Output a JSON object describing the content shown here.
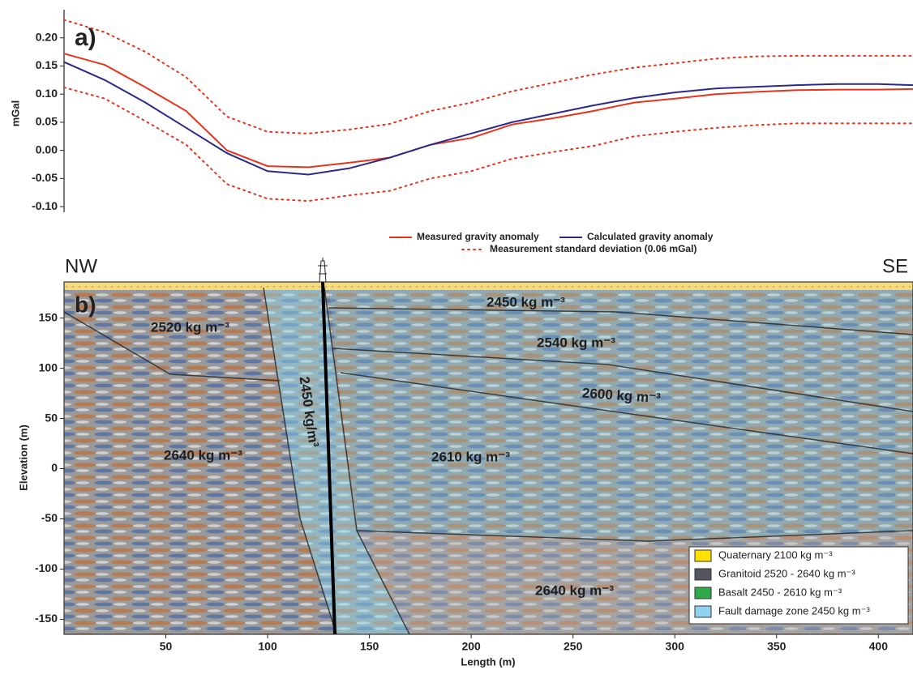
{
  "chart_data": [
    {
      "type": "line",
      "panel_label": "a)",
      "y_label": "mGal",
      "x": [
        0,
        20,
        40,
        60,
        80,
        100,
        120,
        140,
        160,
        180,
        200,
        220,
        240,
        260,
        280,
        300,
        320,
        340,
        360,
        380,
        400,
        417
      ],
      "xlim": [
        0,
        417
      ],
      "ylim": [
        -0.11,
        0.25
      ],
      "yticks": [
        {
          "value": -0.1,
          "label": "-0.10"
        },
        -0.05,
        {
          "value": 0,
          "label": "0.00"
        },
        0.05,
        {
          "value": 0.1,
          "label": "0.10"
        },
        0.15,
        {
          "value": 0.2,
          "label": "0.20"
        }
      ],
      "series": [
        {
          "name": "Measured gravity anomaly",
          "color": "#e8341c",
          "values": [
            0.172,
            0.152,
            0.112,
            0.07,
            0.0,
            -0.028,
            -0.03,
            -0.022,
            -0.013,
            0.01,
            0.022,
            0.046,
            0.057,
            0.07,
            0.085,
            0.092,
            0.1,
            0.104,
            0.107,
            0.108,
            0.108,
            0.109
          ]
        },
        {
          "name": "Calculated gravity anomaly",
          "color": "#2b2a8c",
          "values": [
            0.157,
            0.125,
            0.085,
            0.04,
            -0.005,
            -0.037,
            -0.043,
            -0.032,
            -0.013,
            0.01,
            0.03,
            0.05,
            0.065,
            0.08,
            0.093,
            0.103,
            0.11,
            0.113,
            0.116,
            0.118,
            0.118,
            0.116
          ]
        },
        {
          "name": "Measurement standard deviation (0.06 mGal)",
          "color": "#e8341c",
          "style": "dotted",
          "upper": [
            0.232,
            0.21,
            0.175,
            0.13,
            0.06,
            0.033,
            0.03,
            0.037,
            0.047,
            0.07,
            0.085,
            0.105,
            0.12,
            0.135,
            0.147,
            0.155,
            0.163,
            0.167,
            0.168,
            0.168,
            0.168,
            0.168
          ],
          "lower": [
            0.112,
            0.092,
            0.052,
            0.01,
            -0.06,
            -0.086,
            -0.09,
            -0.08,
            -0.072,
            -0.05,
            -0.037,
            -0.015,
            -0.003,
            0.008,
            0.025,
            0.033,
            0.04,
            0.045,
            0.048,
            0.048,
            0.048,
            0.048
          ]
        }
      ]
    },
    {
      "type": "section",
      "panel_label": "b)",
      "x_label": "Length (m)",
      "y_label": "Elevation (m)",
      "xlim": [
        0,
        417
      ],
      "ylim": [
        -165,
        186
      ],
      "xticks": [
        50,
        100,
        150,
        200,
        250,
        300,
        350,
        400
      ],
      "yticks": [
        150,
        100,
        50,
        0,
        -50,
        -100,
        -150
      ],
      "corner_labels": [
        "NW",
        "SE"
      ],
      "annotations": [
        "2450 kg m⁻³",
        "2520 kg m⁻³",
        "2540 kg m⁻³",
        "2600 kg m⁻³",
        "2640 kg m⁻³",
        "2610 kg m⁻³",
        "2640 kg m⁻³",
        "2450 kg/m³"
      ],
      "legend": [
        {
          "name": "Quaternary 2100 kg m⁻³",
          "color": "#ffe000"
        },
        {
          "name": "Granitoid 2520 - 2640 kg m⁻³",
          "color": "#55555f"
        },
        {
          "name": "Basalt 2450 - 2610 kg m⁻³",
          "color": "#2faa4a"
        },
        {
          "name": "Fault damage zone 2450 kg m⁻³",
          "color": "#8fd3f0"
        }
      ]
    }
  ]
}
